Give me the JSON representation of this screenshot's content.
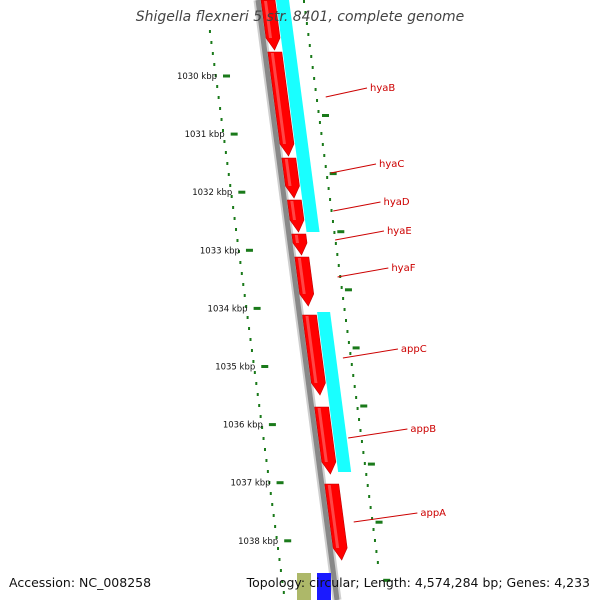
{
  "title": "Shigella flexneri 5 str. 8401, complete genome",
  "footer": {
    "accession": "Accession: NC_008258",
    "summary": "Topology: circular; Length: 4,574,284 bp; Genes: 4,233"
  },
  "colors": {
    "forward_feature": "#ff0000",
    "cds_highlight": "#00ffff",
    "backbone": "#888888",
    "tick": "#1a7a1a",
    "gene_label": "#cc0000",
    "tick_label": "#111111"
  },
  "axis": {
    "unit": "kbp",
    "ticks": [
      {
        "label": "1030 kbp"
      },
      {
        "label": "1031 kbp"
      },
      {
        "label": "1032 kbp"
      },
      {
        "label": "1033 kbp"
      },
      {
        "label": "1034 kbp"
      },
      {
        "label": "1035 kbp"
      },
      {
        "label": "1036 kbp"
      },
      {
        "label": "1037 kbp"
      },
      {
        "label": "1038 kbp"
      }
    ]
  },
  "genes": [
    {
      "name": "hyaB"
    },
    {
      "name": "hyaC"
    },
    {
      "name": "hyaD"
    },
    {
      "name": "hyaE"
    },
    {
      "name": "hyaF"
    },
    {
      "name": "appC"
    },
    {
      "name": "appB"
    },
    {
      "name": "appA"
    }
  ]
}
